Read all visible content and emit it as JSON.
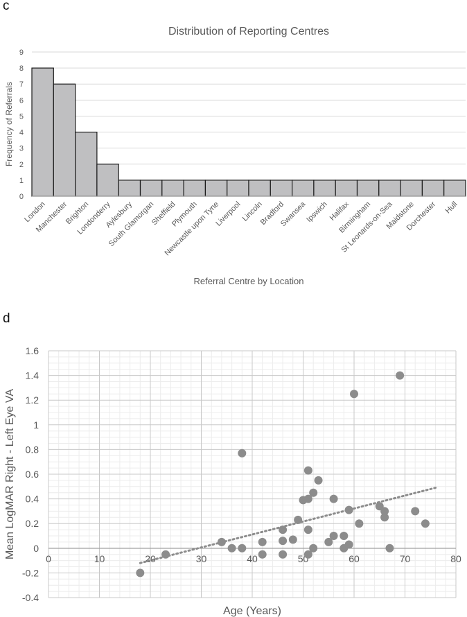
{
  "panel_c_label": "c",
  "panel_d_label": "d",
  "chart_data": [
    {
      "type": "bar",
      "title": "Distribution of Reporting Centres",
      "xlabel": "Referral Centre by Location",
      "ylabel": "Frequency of Referrals",
      "ylim": [
        0,
        9
      ],
      "yticks": [
        0,
        1,
        2,
        3,
        4,
        5,
        6,
        7,
        8,
        9
      ],
      "grid": true,
      "colors": {
        "bar": "#bfbfc1",
        "bar_border": "#1a1a1a",
        "grid": "#d9d9d9",
        "text": "#595959"
      },
      "categories": [
        "London",
        "Manchester",
        "Brighton",
        "Londonderry",
        "Aylesbury",
        "South Glamorgan",
        "Sheffield",
        "Plymouth",
        "Newcastle upon Tyne",
        "Liverpool",
        "Lincoln",
        "Bradford",
        "Swansea",
        "Ipswich",
        "Halifax",
        "Birmingham",
        "St Leonards-on-Sea",
        "Maidstone",
        "Dorchester",
        "Hull"
      ],
      "values": [
        8,
        7,
        4,
        2,
        1,
        1,
        1,
        1,
        1,
        1,
        1,
        1,
        1,
        1,
        1,
        1,
        1,
        1,
        1,
        1
      ]
    },
    {
      "type": "scatter",
      "title": "",
      "xlabel": "Age (Years)",
      "ylabel": "Mean LogMAR Right - Left Eye VA",
      "xlim": [
        0,
        80
      ],
      "ylim": [
        -0.4,
        1.6
      ],
      "xticks": [
        0,
        10,
        20,
        30,
        40,
        50,
        60,
        70,
        80
      ],
      "yticks": [
        -0.4,
        -0.2,
        0,
        0.2,
        0.4,
        0.6,
        0.8,
        1,
        1.2,
        1.4,
        1.6
      ],
      "grid": true,
      "colors": {
        "point": "#8c8c8c",
        "trend": "#8c8c8c",
        "major_grid": "#c8c8c8",
        "minor_grid": "#ececec",
        "text": "#595959"
      },
      "trendline": {
        "type": "linear",
        "x_range": [
          18,
          76
        ],
        "y_start": -0.12,
        "y_end": 0.49
      },
      "points": [
        {
          "x": 18,
          "y": -0.2
        },
        {
          "x": 23,
          "y": -0.05
        },
        {
          "x": 34,
          "y": 0.05
        },
        {
          "x": 36,
          "y": 0
        },
        {
          "x": 38,
          "y": 0
        },
        {
          "x": 38,
          "y": 0.77
        },
        {
          "x": 42,
          "y": 0.05
        },
        {
          "x": 42,
          "y": -0.05
        },
        {
          "x": 46,
          "y": 0.15
        },
        {
          "x": 46,
          "y": 0.06
        },
        {
          "x": 46,
          "y": -0.05
        },
        {
          "x": 48,
          "y": 0.07
        },
        {
          "x": 49,
          "y": 0.23
        },
        {
          "x": 50,
          "y": 0.39
        },
        {
          "x": 51,
          "y": 0.4
        },
        {
          "x": 51,
          "y": 0.63
        },
        {
          "x": 51,
          "y": 0.15
        },
        {
          "x": 51,
          "y": -0.05
        },
        {
          "x": 52,
          "y": 0.45
        },
        {
          "x": 52,
          "y": 0
        },
        {
          "x": 53,
          "y": 0.55
        },
        {
          "x": 55,
          "y": 0.05
        },
        {
          "x": 56,
          "y": 0.4
        },
        {
          "x": 56,
          "y": 0.1
        },
        {
          "x": 58,
          "y": 0.1
        },
        {
          "x": 58,
          "y": 0
        },
        {
          "x": 59,
          "y": 0.31
        },
        {
          "x": 59,
          "y": 0.03
        },
        {
          "x": 60,
          "y": 1.25
        },
        {
          "x": 61,
          "y": 0.2
        },
        {
          "x": 65,
          "y": 0.34
        },
        {
          "x": 66,
          "y": 0.3
        },
        {
          "x": 66,
          "y": 0.25
        },
        {
          "x": 67,
          "y": 0
        },
        {
          "x": 69,
          "y": 1.4
        },
        {
          "x": 72,
          "y": 0.3
        },
        {
          "x": 74,
          "y": 0.2
        }
      ]
    }
  ]
}
